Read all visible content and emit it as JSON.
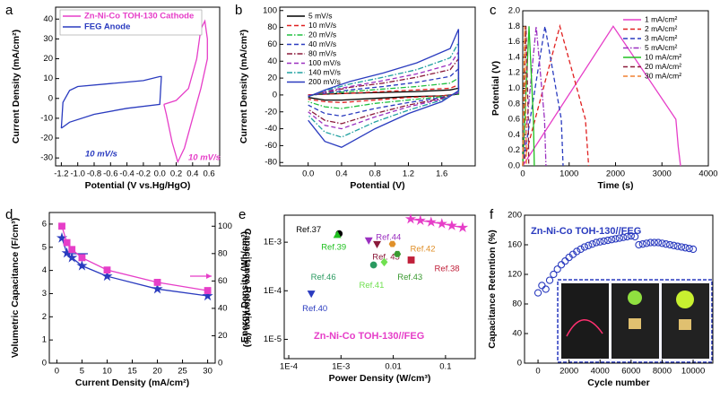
{
  "chart_data": [
    {
      "panel": "a",
      "type": "line",
      "xlabel": "Potential (V vs.Hg/HgO)",
      "ylabel": "Current Density (mA/cm²)",
      "xlim": [
        -1.27,
        0.73
      ],
      "xticks": [
        -1.2,
        {
          "value": -1,
          "label": "-1.0"
        },
        -0.8,
        -0.6,
        -0.4,
        -0.2,
        {
          "value": 0,
          "label": "0.0"
        },
        0.2,
        0.4,
        0.6
      ],
      "ylim": [
        -34,
        46
      ],
      "yticks": [
        -30,
        -20,
        -10,
        0,
        10,
        20,
        30,
        40
      ],
      "legend": "upper left",
      "series": [
        {
          "name": "Zn-Ni-Co TOH-130 Cathode",
          "color": "#e63ec8",
          "dash": "solid",
          "x": [
            0.05,
            0.2,
            0.35,
            0.45,
            0.5,
            0.55,
            0.58,
            0.58,
            0.5,
            0.4,
            0.3,
            0.22,
            0.15,
            0.08,
            0.05
          ],
          "values": [
            -3,
            -1,
            5,
            20,
            35,
            39,
            30,
            20,
            5,
            -10,
            -25,
            -32,
            -22,
            -8,
            -3
          ]
        },
        {
          "name": "FEG Anode",
          "color": "#2a3bbf",
          "dash": "solid",
          "x": [
            -1.2,
            -1.18,
            -1.1,
            -1,
            -0.6,
            -0.2,
            0,
            0.02,
            0,
            -0.4,
            -0.8,
            -1.1,
            -1.2
          ],
          "values": [
            -15,
            -2,
            4,
            6,
            7.5,
            9,
            11,
            11,
            -3,
            -5,
            -8,
            -12,
            -15
          ]
        }
      ],
      "annotations": [
        {
          "text": "10 mV/s",
          "color": "#2a3bbf"
        },
        {
          "text": "10 mV/s",
          "color": "#e63ec8"
        }
      ]
    },
    {
      "panel": "b",
      "type": "line",
      "xlabel": "Potential (V)",
      "ylabel": "Current Density (mA/cm²)",
      "xlim": [
        -0.34,
        2.0
      ],
      "xticks": [
        {
          "value": 0,
          "label": "0.0"
        },
        0.4,
        0.8,
        1.2,
        1.6
      ],
      "ylim": [
        -84,
        104
      ],
      "yticks": [
        -80,
        -60,
        -40,
        -20,
        0,
        20,
        40,
        60,
        80,
        100
      ],
      "legend": "upper left",
      "x": [
        0,
        0.2,
        0.5,
        0.9,
        1.3,
        1.7,
        1.8,
        1.8,
        1.6,
        1.2,
        0.8,
        0.4,
        0.2,
        0
      ],
      "series": [
        {
          "name": "5 mV/s",
          "color": "#000000",
          "dash": "solid",
          "values": [
            0,
            1,
            2,
            3,
            4,
            6,
            8,
            1,
            -1,
            -2,
            -4,
            -6,
            -6,
            -3
          ]
        },
        {
          "name": "10 mV/s",
          "color": "#e02020",
          "dash": "dashed",
          "values": [
            0,
            1,
            2,
            4,
            6,
            8,
            12,
            1,
            -1,
            -3,
            -6,
            -9,
            -8,
            -5
          ]
        },
        {
          "name": "20 mV/s",
          "color": "#20c040",
          "dash": "dashdot",
          "values": [
            -1,
            2,
            4,
            7,
            10,
            14,
            20,
            1,
            -2,
            -6,
            -10,
            -16,
            -14,
            -8
          ]
        },
        {
          "name": "40 mV/s",
          "color": "#2a3bbf",
          "dash": "dashed",
          "values": [
            -1,
            2,
            6,
            10,
            15,
            22,
            31,
            2,
            -3,
            -9,
            -16,
            -25,
            -22,
            -12
          ]
        },
        {
          "name": "80 mV/s",
          "color": "#8b1a3a",
          "dash": "dashdot",
          "values": [
            -1,
            3,
            9,
            14,
            21,
            30,
            43,
            3,
            -4,
            -12,
            -22,
            -34,
            -30,
            -17
          ]
        },
        {
          "name": "100 mV/s",
          "color": "#9b30c0",
          "dash": "dashed",
          "values": [
            -1,
            4,
            10,
            17,
            25,
            36,
            51,
            3,
            -5,
            -14,
            -26,
            -40,
            -36,
            -20
          ]
        },
        {
          "name": "140 mV/s",
          "color": "#20a0a0",
          "dash": "dashdot",
          "values": [
            -2,
            5,
            13,
            21,
            30,
            44,
            62,
            4,
            -6,
            -18,
            -32,
            -50,
            -44,
            -24
          ]
        },
        {
          "name": "200 mV/s",
          "color": "#2a3bbf",
          "dash": "solid",
          "values": [
            -2,
            6,
            16,
            26,
            38,
            55,
            78,
            5,
            -8,
            -22,
            -40,
            -62,
            -55,
            -30
          ]
        }
      ]
    },
    {
      "panel": "c",
      "type": "line",
      "xlabel": "Time (s)",
      "ylabel": "Potential (V)",
      "xlim": [
        0,
        4000
      ],
      "xticks": [
        0,
        1000,
        2000,
        3000,
        4000
      ],
      "ylim": [
        0,
        2
      ],
      "yticks": [
        {
          "value": 0,
          "label": "0.0"
        },
        0.2,
        0.4,
        0.6,
        0.8,
        {
          "value": 1,
          "label": "1.0"
        },
        1.2,
        1.4,
        1.6,
        1.8,
        {
          "value": 2,
          "label": "2.0"
        }
      ],
      "legend": "upper right",
      "series": [
        {
          "name": "1 mA/cm²",
          "color": "#e63ec8",
          "dash": "solid",
          "x": [
            0,
            1950,
            3300,
            3350,
            3400
          ],
          "values": [
            0,
            1.8,
            0.6,
            0.25,
            0
          ]
        },
        {
          "name": "2 mA/cm²",
          "color": "#e02020",
          "dash": "dashed",
          "x": [
            0,
            800,
            1350,
            1420
          ],
          "values": [
            0,
            1.8,
            0.6,
            0
          ]
        },
        {
          "name": "3 mA/cm²",
          "color": "#2a3bbf",
          "dash": "dashed",
          "x": [
            0,
            480,
            830,
            870
          ],
          "values": [
            0,
            1.8,
            0.6,
            0
          ]
        },
        {
          "name": "5 mA/cm²",
          "color": "#9b30c0",
          "dash": "dashdot",
          "x": [
            0,
            290,
            470,
            500
          ],
          "values": [
            0,
            1.8,
            0.6,
            0
          ]
        },
        {
          "name": "10 mA/cm²",
          "color": "#20c020",
          "dash": "solid",
          "x": [
            0,
            135,
            230,
            250
          ],
          "values": [
            0,
            1.8,
            0.6,
            0
          ]
        },
        {
          "name": "20 mA/cm²",
          "color": "#8b1a3a",
          "dash": "dashed",
          "x": [
            0,
            70,
            120,
            130
          ],
          "values": [
            0,
            1.8,
            0.6,
            0
          ]
        },
        {
          "name": "30 mA/cm²",
          "color": "#f08030",
          "dash": "dashed",
          "x": [
            0,
            40,
            70,
            80
          ],
          "values": [
            0,
            1.8,
            0.6,
            0
          ]
        }
      ]
    },
    {
      "panel": "d",
      "type": "line",
      "xlabel": "Current Density (mA/cm²)",
      "ylabel": "Volumetric Capacitance (F/cm³)",
      "y2label": "Capacitance Retention (%)",
      "xlim": [
        -1.5,
        31.5
      ],
      "xticks": [
        0,
        5,
        10,
        15,
        20,
        25,
        30
      ],
      "ylim": [
        0,
        6.5
      ],
      "yticks": [
        0,
        1,
        2,
        3,
        4,
        5,
        6
      ],
      "y2lim": [
        0,
        110
      ],
      "y2ticks": [
        0,
        20,
        40,
        60,
        80,
        100
      ],
      "x": [
        1,
        2,
        3,
        5,
        10,
        20,
        30
      ],
      "series": [
        {
          "color": "#2a3bbf",
          "marker": "star",
          "dash": "solid",
          "values": [
            5.4,
            4.75,
            4.55,
            4.2,
            3.75,
            3.2,
            2.9
          ]
        },
        {
          "color": "#e63ec8",
          "marker": "square",
          "dash": "solid",
          "axis": "y2",
          "values": [
            100,
            88,
            83,
            77,
            68,
            59,
            53
          ]
        }
      ]
    },
    {
      "panel": "e",
      "type": "scatter",
      "xlabel": "Power Density (W/cm³)",
      "ylabel": "Energy Density (Wh/cm³)",
      "xscale": "log",
      "yscale": "log",
      "xlim": [
        8.2e-05,
        0.37
      ],
      "xticks": [
        {
          "value": 0.0001,
          "label": "1E-4"
        },
        {
          "value": 0.001,
          "label": "1E-3"
        },
        0.01,
        0.1
      ],
      "ylim": [
        4e-06,
        0.0036
      ],
      "yticks": [
        {
          "value": 1e-05,
          "label": "1E-5"
        },
        {
          "value": 0.0001,
          "label": "1E-4"
        },
        {
          "value": 0.001,
          "label": "1E-3"
        }
      ],
      "series": [
        {
          "color": "#e63ec8",
          "marker": "star",
          "line": true,
          "x": [
            0.0215,
            0.033,
            0.053,
            0.085,
            0.132,
            0.213
          ],
          "values": [
            0.003,
            0.0028,
            0.0026,
            0.0024,
            0.0022,
            0.002
          ]
        },
        {
          "name": "Ref.37",
          "color": "#000000",
          "marker": "circle",
          "x": [
            0.00092
          ],
          "values": [
            0.0015
          ]
        },
        {
          "name": "Ref.39",
          "color": "#20c020",
          "marker": "triangle-up",
          "x": [
            0.00085
          ],
          "values": [
            0.0014
          ]
        },
        {
          "name": "Ref.44",
          "color": "#9b30c0",
          "marker": "triangle-down",
          "x": [
            0.0034
          ],
          "values": [
            0.0011
          ]
        },
        {
          "name": "Ref. 45",
          "color": "#8b1a3a",
          "marker": "triangle-down",
          "x": [
            0.0049
          ],
          "values": [
            0.00092
          ]
        },
        {
          "name": "Ref.42",
          "color": "#e0902a",
          "marker": "hexagon",
          "x": [
            0.0096
          ],
          "values": [
            0.00092
          ]
        },
        {
          "name": "Ref.43",
          "color": "#3a9a30",
          "marker": "hexagon",
          "x": [
            0.012
          ],
          "values": [
            0.00057
          ]
        },
        {
          "name": "Ref.38",
          "color": "#c0203a",
          "marker": "square",
          "x": [
            0.022
          ],
          "values": [
            0.00043
          ]
        },
        {
          "name": "Ref.46",
          "color": "#2a9a60",
          "marker": "circle",
          "x": [
            0.0042
          ],
          "values": [
            0.00034
          ]
        },
        {
          "name": "Ref.41",
          "color": "#70e050",
          "marker": "diamond",
          "x": [
            0.0067
          ],
          "values": [
            0.00039
          ]
        },
        {
          "name": "Ref.40",
          "color": "#2a3bbf",
          "marker": "triangle-down",
          "x": [
            0.00027
          ],
          "values": [
            8.8e-05
          ]
        }
      ],
      "annotations": [
        {
          "text": "Zn-Ni-Co TOH-130//FEG",
          "color": "#e63ec8"
        }
      ]
    },
    {
      "panel": "f",
      "type": "scatter",
      "xlabel": "Cycle number",
      "ylabel": "Capacitance Retention (%)",
      "xlim": [
        -870,
        11270
      ],
      "xticks": [
        0,
        2000,
        4000,
        6000,
        8000,
        10000
      ],
      "ylim": [
        0,
        200
      ],
      "yticks": [
        0,
        40,
        80,
        120,
        160,
        200
      ],
      "series": [
        {
          "color": "#2a3bbf",
          "marker": "circle",
          "hollow": true,
          "x": [
            0,
            250,
            500,
            750,
            1000,
            1250,
            1500,
            1750,
            2000,
            2250,
            2500,
            2750,
            3000,
            3250,
            3500,
            3750,
            4000,
            4250,
            4500,
            4750,
            5000,
            5250,
            5500,
            5750,
            6000,
            6250,
            6500,
            6750,
            7000,
            7250,
            7500,
            7750,
            8000,
            8250,
            8500,
            8750,
            9000,
            9250,
            9500,
            9750,
            10000
          ],
          "values": [
            95,
            105,
            100,
            112,
            120,
            127,
            133,
            138,
            143,
            147,
            151,
            154,
            157,
            159,
            161,
            163,
            164,
            165,
            166,
            167,
            168,
            169,
            170,
            171,
            172,
            171,
            160,
            161,
            162,
            163,
            163,
            163,
            162,
            161,
            160,
            159,
            158,
            157,
            156,
            155,
            154
          ]
        }
      ],
      "annotations": [
        {
          "text": "Zn-Ni-Co TOH-130//FEG",
          "color": "#2a3bbf"
        }
      ]
    }
  ]
}
